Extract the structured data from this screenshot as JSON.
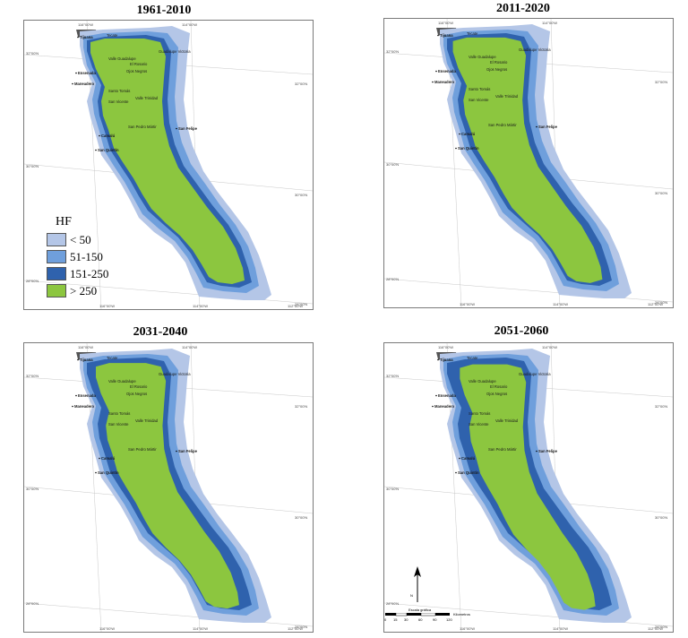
{
  "colors": {
    "lt50": "#b4c6e7",
    "c51_150": "#6f9fdc",
    "c151_250": "#2f62ad",
    "gt250": "#8cc63f",
    "ocean_dark": "#555555"
  },
  "panels": [
    {
      "title": "1961-2010",
      "top_coords": [
        "116°00'W",
        "114°00'W"
      ],
      "bottom_coords": [
        "116°00'W",
        "114°00'W",
        "112°00'W"
      ],
      "left_coords": [
        "32°00'N",
        "30°00'N",
        "28°00'N"
      ],
      "right_coords": [
        "32°00'N",
        "30°00'N",
        "28°00'N"
      ],
      "places": {
        "tijuana": "Tijuana",
        "tecate": "Tecate",
        "guadalupe_victoria": "Guadalupe Victoria",
        "valle_guadalupe": "Valle Guadalupe",
        "el_rosario": "El Rosario",
        "ojos_negros": "Ojos Negros",
        "ensenada": "Ensenada",
        "maneadero": "Maneadero",
        "santo_tomas": "Santo Tomás",
        "valle_trinidad": "Valle Trinidad",
        "san_vicente": "San Vicente",
        "san_pedro_martir": "San Pedro Mártir",
        "san_felipe": "San Felipe",
        "camalu": "Camalú",
        "san_quintin": "San Quintín"
      }
    },
    {
      "title": "2011-2020",
      "top_coords": [
        "116°00'W",
        "114°00'W"
      ],
      "bottom_coords": [
        "116°00'W",
        "114°00'W",
        "112°00'W"
      ],
      "left_coords": [
        "32°00'N",
        "30°00'N",
        "28°00'N"
      ],
      "right_coords": [
        "32°00'N",
        "30°00'N",
        "28°00'N"
      ],
      "places": {
        "tijuana": "Tijuana",
        "tecate": "Tecate",
        "guadalupe_victoria": "Guadalupe Victoria",
        "valle_guadalupe": "Valle Guadalupe",
        "el_rosario": "El Rosario",
        "ojos_negros": "Ojos Negros",
        "ensenada": "Ensenada",
        "maneadero": "Maneadero",
        "santo_tomas": "Santo Tomás",
        "valle_trinidad": "Valle Trinidad",
        "san_vicente": "San Vicente",
        "san_pedro_martir": "San Pedro Mártir",
        "san_felipe": "San Felipe",
        "camalu": "Camalú",
        "san_quintin": "San Quintín"
      }
    },
    {
      "title": "2031-2040",
      "top_coords": [
        "116°00'W",
        "114°00'W"
      ],
      "bottom_coords": [
        "116°00'W",
        "114°00'W",
        "112°00'W"
      ],
      "left_coords": [
        "32°00'N",
        "30°00'N",
        "28°00'N"
      ],
      "right_coords": [
        "32°00'N",
        "30°00'N",
        "28°00'N"
      ],
      "places": {
        "tijuana": "Tijuana",
        "tecate": "Tecate",
        "guadalupe_victoria": "Guadalupe Victoria",
        "valle_guadalupe": "Valle Guadalupe",
        "el_rosario": "El Rosario",
        "ojos_negros": "Ojos Negros",
        "ensenada": "Ensenada",
        "maneadero": "Maneadero",
        "santo_tomas": "Santo Tomás",
        "valle_trinidad": "Valle Trinidad",
        "san_vicente": "San Vicente",
        "san_pedro_martir": "San Pedro Mártir",
        "san_felipe": "San Felipe",
        "camalu": "Camalú",
        "san_quintin": "San Quintín"
      }
    },
    {
      "title": "2051-2060",
      "top_coords": [
        "116°00'W",
        "114°00'W"
      ],
      "bottom_coords": [
        "116°00'W",
        "114°00'W",
        "112°00'W"
      ],
      "left_coords": [
        "32°00'N",
        "30°00'N",
        "28°00'N"
      ],
      "right_coords": [
        "32°00'N",
        "30°00'N",
        "28°00'N"
      ],
      "places": {
        "tijuana": "Tijuana",
        "tecate": "Tecate",
        "guadalupe_victoria": "Guadalupe Victoria",
        "valle_guadalupe": "Valle Guadalupe",
        "el_rosario": "El Rosario",
        "ojos_negros": "Ojos Negros",
        "ensenada": "Ensenada",
        "maneadero": "Maneadero",
        "santo_tomas": "Santo Tomás",
        "valle_trinidad": "Valle Trinidad",
        "san_vicente": "San Vicente",
        "san_pedro_martir": "San Pedro Mártir",
        "san_felipe": "San Felipe",
        "camalu": "Camalú",
        "san_quintin": "San Quintín"
      }
    }
  ],
  "legend": {
    "title": "HF",
    "items": [
      {
        "label": "< 50",
        "color": "#b4c6e7"
      },
      {
        "label": "51-150",
        "color": "#6f9fdc"
      },
      {
        "label": "151-250",
        "color": "#2f62ad"
      },
      {
        "label": "> 250",
        "color": "#8cc63f"
      }
    ]
  },
  "scale": {
    "title": "Escala gráfica",
    "ticks": [
      "0",
      "15",
      "30",
      "60",
      "90",
      "120"
    ],
    "unit": "Kilometros"
  },
  "north_label": "N"
}
